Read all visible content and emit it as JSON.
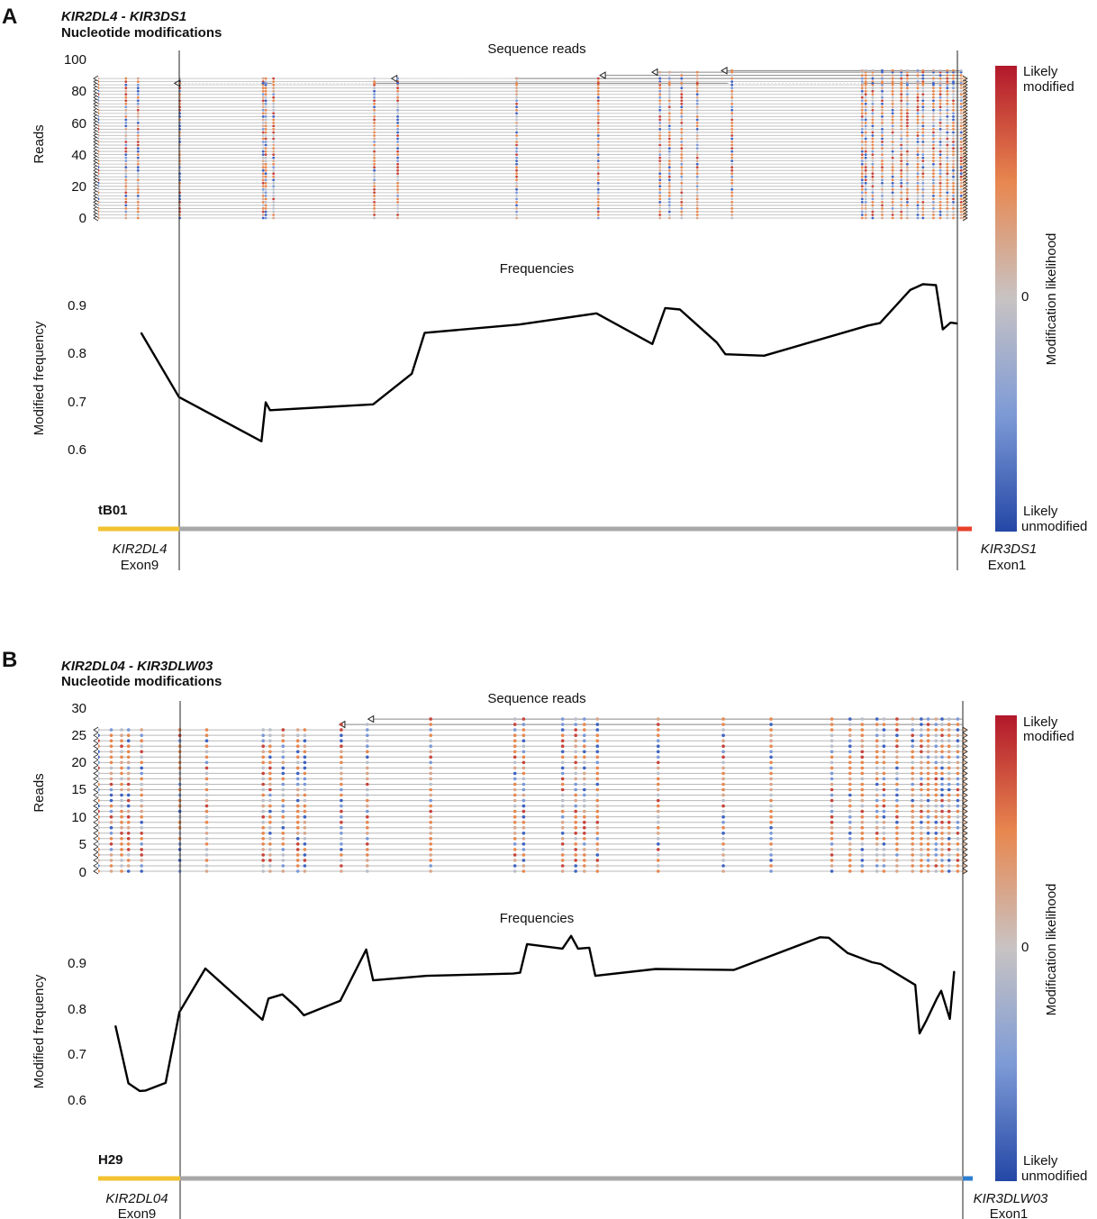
{
  "panels": [
    {
      "letter": "A",
      "title": "KIR2DL4 - KIR3DS1",
      "subtitle": "Nucleotide modifications",
      "reads_title": "Sequence reads",
      "reads_ylabel": "Reads",
      "freq_title": "Frequencies",
      "freq_ylabel": "Modified frequency",
      "sample": "tB01",
      "left_gene": "KIR2DL4",
      "left_exon": "Exon9",
      "right_gene": "KIR3DS1",
      "right_exon": "Exon1",
      "reads_ticks": [
        "100",
        "80",
        "60",
        "40",
        "20",
        "0"
      ],
      "freq_ticks": [
        "0.9",
        "0.8",
        "0.7",
        "0.6"
      ],
      "colorbar": {
        "top_line1": "Likely",
        "top_line2": "modified",
        "mid": "0",
        "bottom_line1": "Likely",
        "bottom_line2": "unmodified",
        "label": "Modification likelihood"
      },
      "track_colors": {
        "left": "#f2c230",
        "middle": "#a8a8a8",
        "right": "#e8402a"
      }
    },
    {
      "letter": "B",
      "title": "KIR2DL04 - KIR3DLW03",
      "subtitle": "Nucleotide modifications",
      "reads_title": "Sequence reads",
      "reads_ylabel": "Reads",
      "freq_title": "Frequencies",
      "freq_ylabel": "Modified frequency",
      "sample": "H29",
      "left_gene": "KIR2DL04",
      "left_exon": "Exon9",
      "right_gene": "KIR3DLW03",
      "right_exon": "Exon1",
      "reads_ticks": [
        "30",
        "25",
        "20",
        "15",
        "10",
        "5",
        "0"
      ],
      "freq_ticks": [
        "0.9",
        "0.8",
        "0.7",
        "0.6"
      ],
      "colorbar": {
        "top_line1": "Likely",
        "top_line2": "modified",
        "mid": "0",
        "bottom_line1": "Likely",
        "bottom_line2": "unmodified",
        "label": "Modification likelihood"
      },
      "track_colors": {
        "left": "#f2c230",
        "middle": "#a8a8a8",
        "right": "#2f7fd0"
      }
    }
  ],
  "chart_data": [
    {
      "type": "line",
      "panel": "A",
      "title": "Frequencies",
      "ylabel": "Modified frequency",
      "ylim": [
        0.5,
        0.95
      ],
      "x_domain": [
        0,
        1000
      ],
      "boundaries": [
        94,
        1000
      ],
      "x": [
        50,
        94,
        190,
        195,
        200,
        320,
        365,
        380,
        490,
        580,
        645,
        660,
        677,
        720,
        730,
        775,
        896,
        910,
        945,
        960,
        975,
        983,
        992,
        1000
      ],
      "y": [
        0.84,
        0.708,
        0.617,
        0.697,
        0.681,
        0.693,
        0.756,
        0.84,
        0.857,
        0.88,
        0.817,
        0.891,
        0.888,
        0.82,
        0.796,
        0.793,
        0.855,
        0.86,
        0.928,
        0.94,
        0.938,
        0.847,
        0.861,
        0.859
      ]
    },
    {
      "type": "line",
      "panel": "B",
      "title": "Frequencies",
      "ylabel": "Modified frequency",
      "ylim": [
        0.5,
        0.97
      ],
      "x_domain": [
        0,
        1000
      ],
      "boundaries": [
        94,
        1000
      ],
      "x": [
        20,
        35,
        48,
        55,
        78,
        94,
        124,
        190,
        197,
        213,
        230,
        238,
        280,
        310,
        318,
        380,
        480,
        488,
        496,
        537,
        547,
        555,
        568,
        575,
        645,
        735,
        835,
        845,
        867,
        895,
        905,
        945,
        950,
        958,
        970,
        975,
        985,
        990
      ],
      "y": [
        0.76,
        0.633,
        0.616,
        0.617,
        0.634,
        0.79,
        0.886,
        0.773,
        0.82,
        0.829,
        0.8,
        0.783,
        0.815,
        0.928,
        0.86,
        0.87,
        0.875,
        0.877,
        0.94,
        0.93,
        0.958,
        0.93,
        0.932,
        0.87,
        0.885,
        0.883,
        0.955,
        0.954,
        0.92,
        0.9,
        0.896,
        0.85,
        0.743,
        0.772,
        0.82,
        0.837,
        0.775,
        0.88
      ]
    }
  ],
  "reads_data": [
    {
      "panel": "A",
      "ylim": [
        0,
        100
      ],
      "max_read": 88,
      "columns": [
        0,
        32,
        46,
        94,
        190,
        193,
        202,
        318,
        345,
        482,
        576,
        647,
        658,
        672,
        690,
        730,
        880,
        884,
        892,
        903,
        915,
        925,
        932,
        944,
        950,
        962,
        970,
        978,
        985,
        994
      ],
      "long_reads": [
        {
          "start": 90,
          "end": 995,
          "top": 85,
          "gaps": [
            [
              95,
              188
            ],
            [
              200,
              318
            ],
            [
              725,
              880
            ]
          ]
        },
        {
          "start": 340,
          "end": 995,
          "top": 88,
          "gaps": [
            [
              345,
              480
            ]
          ]
        },
        {
          "start": 580,
          "end": 995,
          "top": 90,
          "gaps": []
        },
        {
          "start": 640,
          "end": 995,
          "top": 92,
          "gaps": []
        },
        {
          "start": 720,
          "end": 995,
          "top": 93,
          "gaps": []
        }
      ]
    },
    {
      "panel": "B",
      "ylim": [
        0,
        30
      ],
      "max_read": 26,
      "columns": [
        0,
        15,
        27,
        35,
        50,
        94,
        125,
        190,
        198,
        213,
        230,
        238,
        280,
        310,
        383,
        480,
        490,
        535,
        550,
        560,
        575,
        645,
        720,
        775,
        845,
        866,
        880,
        897,
        905,
        920,
        938,
        948,
        956,
        965,
        972,
        980,
        990
      ],
      "long_reads": [
        {
          "start": 280,
          "end": 995,
          "top": 27,
          "gaps": []
        },
        {
          "start": 313,
          "end": 995,
          "top": 28,
          "gaps": []
        }
      ]
    }
  ]
}
